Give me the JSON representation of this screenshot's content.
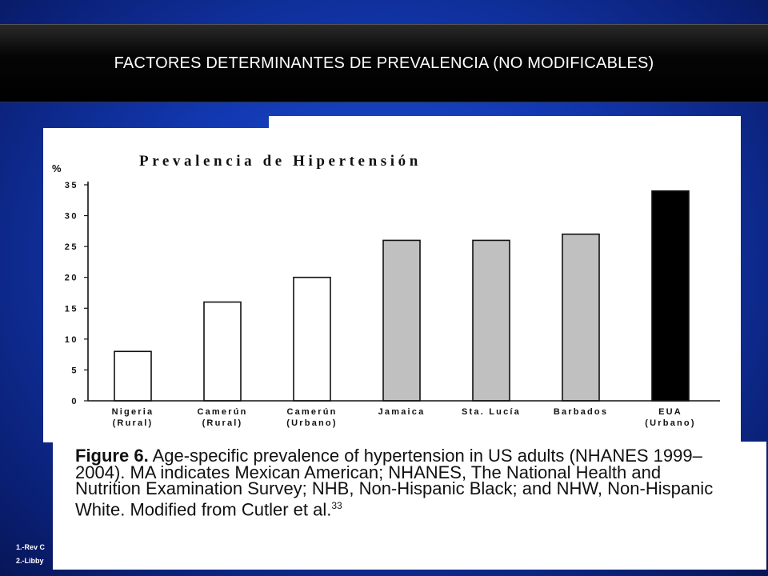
{
  "slide_title": "FACTORES DETERMINANTES DE PREVALENCIA (NO MODIFICABLES)",
  "references": [
    "1.-Rev C",
    "2.-Libby"
  ],
  "caption": {
    "label": "Figure 6.",
    "text": " Age-specific prevalence of hypertension in US adults (NHANES 1999–2004). MA indicates Mexican American; NHANES, The National Health and Nutrition Examination Survey; NHB, Non-Hispanic Black; and NHW, Non-Hispanic White. Modified from Cutler et al.",
    "superscript": "33"
  },
  "colors": {
    "white_fill": "#ffffff",
    "gray_fill": "#c0c0c0",
    "black_fill": "#000000"
  },
  "chart_data": {
    "type": "bar",
    "title": "Prevalencia de Hipertensión",
    "ylabel": "%",
    "xlabel": "",
    "ylim": [
      0,
      35
    ],
    "yticks": [
      "0",
      "5",
      "10",
      "15",
      "20",
      "25",
      "30",
      "35"
    ],
    "grid": false,
    "legend": "none",
    "categories": [
      {
        "line1": "Nigeria",
        "line2": "(Rural)",
        "value": 8,
        "fill": "white"
      },
      {
        "line1": "Camerún",
        "line2": "(Rural)",
        "value": 16,
        "fill": "white"
      },
      {
        "line1": "Camerún",
        "line2": "(Urbano)",
        "value": 20,
        "fill": "white"
      },
      {
        "line1": "Jamaica",
        "line2": "",
        "value": 26,
        "fill": "gray"
      },
      {
        "line1": "Sta. Lucía",
        "line2": "",
        "value": 26,
        "fill": "gray"
      },
      {
        "line1": "Barbados",
        "line2": "",
        "value": 27,
        "fill": "gray"
      },
      {
        "line1": "EUA",
        "line2": "(Urbano)",
        "value": 34,
        "fill": "black"
      }
    ]
  }
}
